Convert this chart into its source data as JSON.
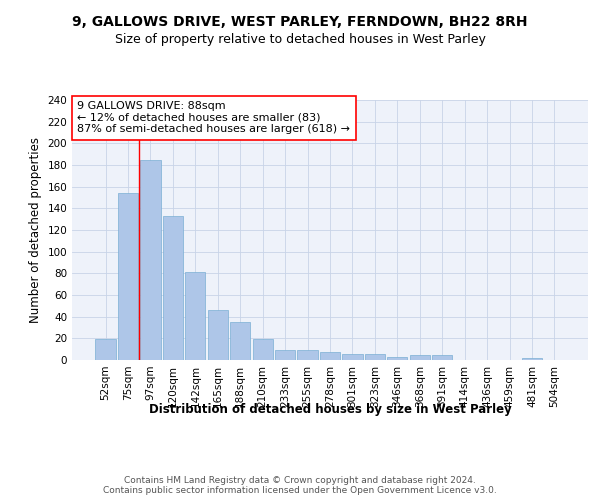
{
  "title_line1": "9, GALLOWS DRIVE, WEST PARLEY, FERNDOWN, BH22 8RH",
  "title_line2": "Size of property relative to detached houses in West Parley",
  "xlabel": "Distribution of detached houses by size in West Parley",
  "ylabel": "Number of detached properties",
  "categories": [
    "52sqm",
    "75sqm",
    "97sqm",
    "120sqm",
    "142sqm",
    "165sqm",
    "188sqm",
    "210sqm",
    "233sqm",
    "255sqm",
    "278sqm",
    "301sqm",
    "323sqm",
    "346sqm",
    "368sqm",
    "391sqm",
    "414sqm",
    "436sqm",
    "459sqm",
    "481sqm",
    "504sqm"
  ],
  "values": [
    19,
    154,
    185,
    133,
    81,
    46,
    35,
    19,
    9,
    9,
    7,
    6,
    6,
    3,
    5,
    5,
    0,
    0,
    0,
    2,
    0
  ],
  "bar_color": "#aec6e8",
  "bar_edge_color": "#7aafd4",
  "vline_x": 1.5,
  "vline_color": "red",
  "annotation_text": "9 GALLOWS DRIVE: 88sqm\n← 12% of detached houses are smaller (83)\n87% of semi-detached houses are larger (618) →",
  "annotation_box_color": "white",
  "annotation_box_edge_color": "red",
  "ylim": [
    0,
    240
  ],
  "yticks": [
    0,
    20,
    40,
    60,
    80,
    100,
    120,
    140,
    160,
    180,
    200,
    220,
    240
  ],
  "footer_text": "Contains HM Land Registry data © Crown copyright and database right 2024.\nContains public sector information licensed under the Open Government Licence v3.0.",
  "bg_color": "#eef2fa",
  "grid_color": "#c8d4e8",
  "title_fontsize": 10,
  "subtitle_fontsize": 9,
  "axis_label_fontsize": 8.5,
  "tick_fontsize": 7.5,
  "annotation_fontsize": 8,
  "footer_fontsize": 6.5
}
